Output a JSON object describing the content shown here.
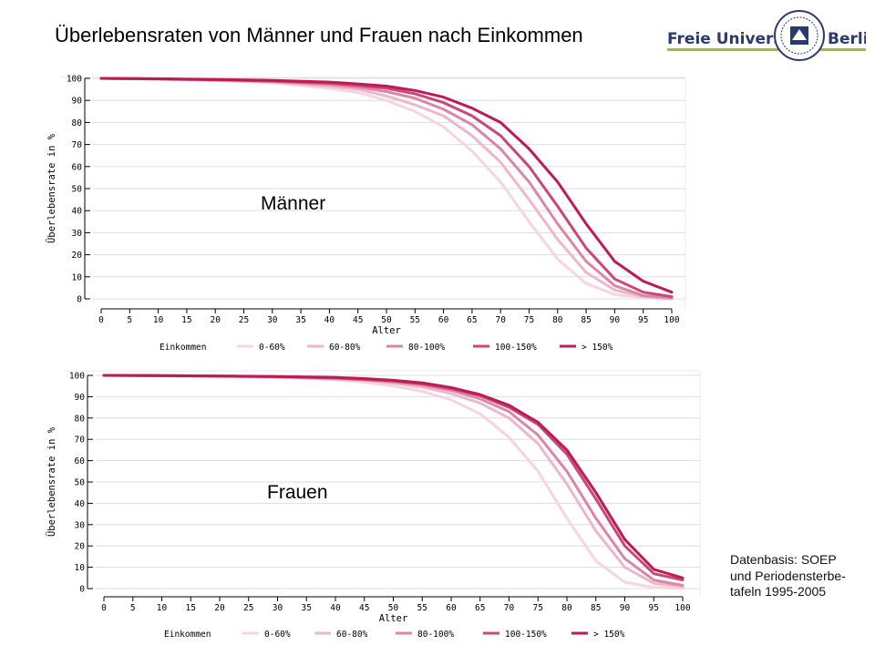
{
  "title": "Überlebensraten von Männer und Frauen nach Einkommen",
  "logo": {
    "left": "Freie Universität",
    "right": "Berlin"
  },
  "source": [
    "Datenbasis: SOEP",
    "und Periodensterbe-",
    "tafeln 1995-2005"
  ],
  "colors": {
    "0-60%": "#f6d5de",
    "60-80%": "#ecb7c7",
    "80-100%": "#dd86a4",
    "100-150%": "#cc4778",
    "> 150%": "#bd1a56",
    "grid": "#dddddd",
    "logo_green": "#9bbd3c",
    "logo_blue": "#2b3a6e"
  },
  "chart_data": [
    {
      "type": "line",
      "annotation": "Männer",
      "xlabel": "Alter",
      "ylabel": "Überlebensrate in %",
      "xlim": [
        0,
        100
      ],
      "ylim": [
        0,
        100
      ],
      "x_ticks": [
        0,
        5,
        10,
        15,
        20,
        25,
        30,
        35,
        40,
        45,
        50,
        55,
        60,
        65,
        70,
        75,
        80,
        85,
        90,
        95,
        100
      ],
      "y_ticks": [
        0,
        10,
        20,
        30,
        40,
        50,
        60,
        70,
        80,
        90,
        100
      ],
      "grid": "horizontal",
      "legend": {
        "title": "Einkommen",
        "position": "bottom"
      },
      "x": [
        0,
        10,
        20,
        30,
        40,
        45,
        50,
        55,
        60,
        65,
        70,
        75,
        80,
        85,
        90,
        95,
        100
      ],
      "series": [
        {
          "name": "0-60%",
          "values": [
            100,
            99.6,
            99,
            98,
            95.5,
            93.5,
            90,
            85,
            78,
            67,
            53,
            35,
            18,
            7,
            2,
            0.5,
            0
          ]
        },
        {
          "name": "60-80%",
          "values": [
            100,
            99.7,
            99.2,
            98.3,
            96.5,
            95,
            92,
            88,
            83,
            74,
            62,
            45,
            27,
            12,
            4,
            1,
            0
          ]
        },
        {
          "name": "80-100%",
          "values": [
            100,
            99.7,
            99.3,
            98.6,
            97.2,
            96,
            94,
            91,
            86,
            79,
            68,
            53,
            34,
            17,
            6,
            1.5,
            0.5
          ]
        },
        {
          "name": "100-150%",
          "values": [
            100,
            99.8,
            99.4,
            98.8,
            97.8,
            96.8,
            95.5,
            93,
            89,
            83,
            74,
            60,
            42,
            23,
            9,
            3,
            1
          ]
        },
        {
          "name": "> 150%",
          "values": [
            100,
            99.8,
            99.5,
            99.1,
            98.3,
            97.5,
            96.5,
            94.5,
            91.5,
            86.5,
            80,
            68,
            53,
            34,
            17,
            8,
            3
          ]
        }
      ]
    },
    {
      "type": "line",
      "annotation": "Frauen",
      "xlabel": "Alter",
      "ylabel": "Überlebensrate in %",
      "xlim": [
        0,
        100
      ],
      "ylim": [
        0,
        100
      ],
      "x_ticks": [
        0,
        5,
        10,
        15,
        20,
        25,
        30,
        35,
        40,
        45,
        50,
        55,
        60,
        65,
        70,
        75,
        80,
        85,
        90,
        95,
        100
      ],
      "y_ticks": [
        0,
        10,
        20,
        30,
        40,
        50,
        60,
        70,
        80,
        90,
        100
      ],
      "grid": "horizontal",
      "legend": {
        "title": "Einkommen",
        "position": "bottom"
      },
      "x": [
        0,
        10,
        20,
        30,
        40,
        45,
        50,
        55,
        60,
        65,
        70,
        75,
        80,
        85,
        90,
        95,
        100
      ],
      "series": [
        {
          "name": "0-60%",
          "values": [
            100,
            99.8,
            99.5,
            99,
            98,
            96.8,
            95,
            92.5,
            88.5,
            82,
            71,
            55,
            33,
            13,
            3,
            0.5,
            0
          ]
        },
        {
          "name": "60-80%",
          "values": [
            100,
            99.8,
            99.6,
            99.2,
            98.4,
            97.6,
            96.3,
            94.5,
            91.5,
            87,
            80,
            68,
            49,
            27,
            10,
            2.5,
            1
          ]
        },
        {
          "name": "80-100%",
          "values": [
            100,
            99.8,
            99.6,
            99.3,
            98.6,
            98,
            97,
            95.5,
            93,
            89,
            83,
            72,
            55,
            33,
            14,
            4,
            1.5
          ]
        },
        {
          "name": "100-150%",
          "values": [
            100,
            99.9,
            99.7,
            99.4,
            98.8,
            98.2,
            97.4,
            96,
            93.8,
            90.5,
            85,
            77,
            63,
            42,
            20,
            7,
            4
          ]
        },
        {
          "name": "> 150%",
          "values": [
            100,
            99.9,
            99.7,
            99.5,
            99,
            98.5,
            97.7,
            96.5,
            94.3,
            91,
            86,
            78,
            65,
            45,
            23,
            9,
            5
          ]
        }
      ]
    }
  ]
}
